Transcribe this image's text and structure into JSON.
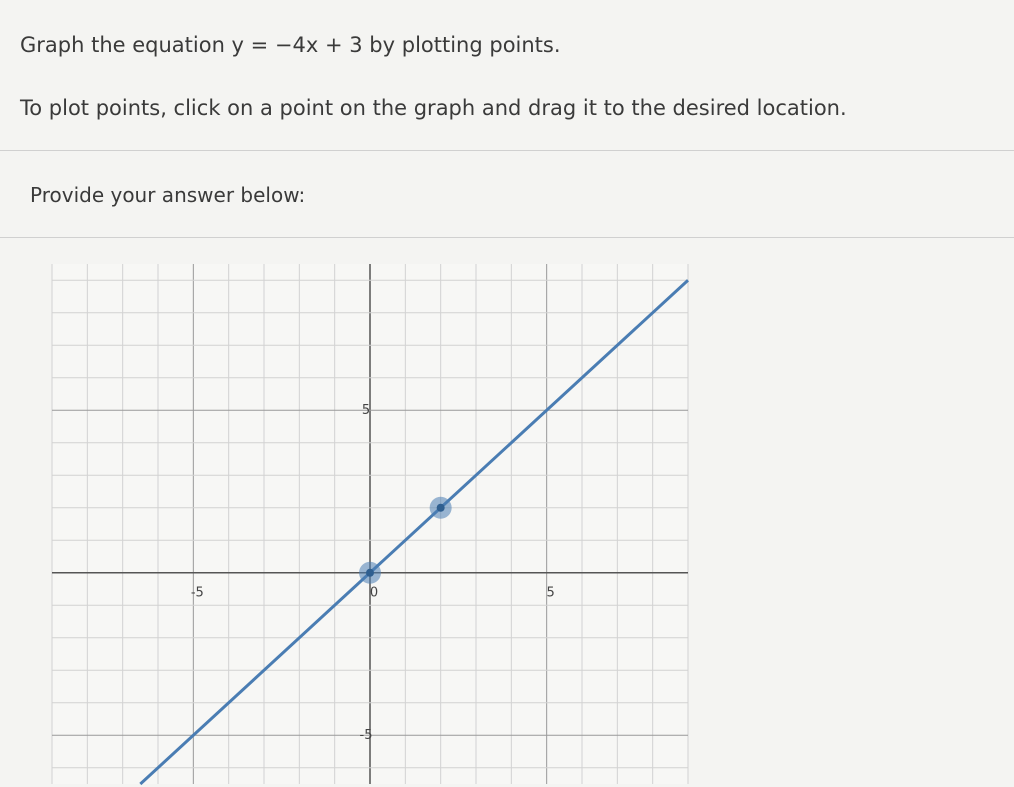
{
  "question": {
    "prompt": "Graph the equation y = −4x + 3 by plotting points.",
    "instruction": "To plot points, click on a point on the graph and drag it to the desired location.",
    "answer_label": "Provide your answer below:"
  },
  "graph": {
    "xlim": [
      -9,
      9
    ],
    "ylim": [
      -6.5,
      9.5
    ],
    "xticks": [
      -5,
      0,
      5
    ],
    "yticks": [
      -5,
      5
    ],
    "xgrid": [
      -9,
      -8,
      -7,
      -6,
      -5,
      -4,
      -3,
      -2,
      -1,
      0,
      1,
      2,
      3,
      4,
      5,
      6,
      7,
      8,
      9
    ],
    "ygrid": [
      -6,
      -5,
      -4,
      -3,
      -2,
      -1,
      0,
      1,
      2,
      3,
      4,
      5,
      6,
      7,
      8,
      9
    ],
    "points": {
      "x": [
        0,
        2
      ],
      "y": [
        0,
        2
      ]
    },
    "color": "#4a7db3"
  }
}
